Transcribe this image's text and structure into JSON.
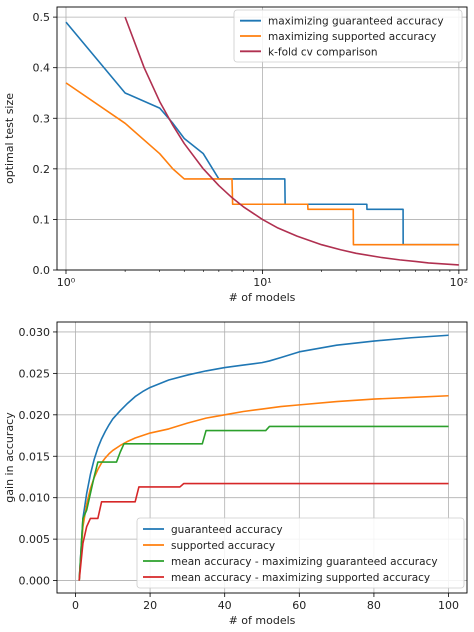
{
  "chart_data": [
    {
      "type": "line",
      "title": "",
      "xlabel": "# of models",
      "ylabel": "optimal test size",
      "xscale": "log",
      "xlim": [
        0.9,
        110
      ],
      "ylim": [
        0,
        0.52
      ],
      "xticks": [
        1,
        10,
        100
      ],
      "xtick_labels": [
        "10⁰",
        "10¹",
        "10²"
      ],
      "yticks": [
        0,
        0.1,
        0.2,
        0.3,
        0.4,
        0.5
      ],
      "ytick_labels": [
        "0.0",
        "0.1",
        "0.2",
        "0.3",
        "0.4",
        "0.5"
      ],
      "grid": true,
      "legend": "top-right",
      "series": [
        {
          "name": "maximizing guaranteed accuracy",
          "color": "#1f77b4",
          "x": [
            1,
            2,
            3,
            3.5,
            4,
            5,
            6,
            7,
            8,
            9,
            10,
            11,
            12,
            13,
            13.05,
            20,
            25,
            30,
            34,
            34.05,
            45,
            50,
            52,
            52.05,
            70,
            100
          ],
          "y": [
            0.49,
            0.35,
            0.32,
            0.29,
            0.26,
            0.23,
            0.18,
            0.18,
            0.18,
            0.18,
            0.18,
            0.18,
            0.18,
            0.18,
            0.13,
            0.13,
            0.13,
            0.13,
            0.13,
            0.12,
            0.12,
            0.12,
            0.12,
            0.05,
            0.05,
            0.05
          ]
        },
        {
          "name": "maximizing supported accuracy",
          "color": "#ff7f0e",
          "x": [
            1,
            2,
            3,
            3.5,
            4,
            5,
            6,
            7,
            7.05,
            10,
            15,
            17,
            17.05,
            24,
            28,
            29,
            29.05,
            50,
            100
          ],
          "y": [
            0.37,
            0.29,
            0.23,
            0.2,
            0.18,
            0.18,
            0.18,
            0.18,
            0.13,
            0.13,
            0.13,
            0.13,
            0.12,
            0.12,
            0.12,
            0.12,
            0.05,
            0.05,
            0.05
          ]
        },
        {
          "name": "k-fold cv comparison",
          "color": "#b03050",
          "x": [
            2,
            2.5,
            3,
            3.5,
            4,
            5,
            6,
            7,
            8,
            10,
            12,
            15,
            20,
            25,
            30,
            40,
            50,
            60,
            70,
            80,
            100
          ],
          "y": [
            0.5,
            0.4,
            0.333,
            0.286,
            0.25,
            0.2,
            0.167,
            0.143,
            0.125,
            0.1,
            0.083,
            0.067,
            0.05,
            0.04,
            0.033,
            0.025,
            0.02,
            0.017,
            0.014,
            0.0125,
            0.01
          ]
        }
      ]
    },
    {
      "type": "line",
      "title": "",
      "xlabel": "# of models",
      "ylabel": "gain in accuracy",
      "xlim": [
        -4.95,
        104.95
      ],
      "ylim": [
        -0.0015,
        0.0312
      ],
      "xticks": [
        0,
        20,
        40,
        60,
        80,
        100
      ],
      "xtick_labels": [
        "0",
        "20",
        "40",
        "60",
        "80",
        "100"
      ],
      "yticks": [
        0,
        0.005,
        0.01,
        0.015,
        0.02,
        0.025,
        0.03
      ],
      "ytick_labels": [
        "0.000",
        "0.005",
        "0.010",
        "0.015",
        "0.020",
        "0.025",
        "0.030"
      ],
      "grid": true,
      "legend": "bottom-right",
      "series": [
        {
          "name": "guaranteed accuracy",
          "color": "#1f77b4",
          "x": [
            1,
            2,
            3,
            4,
            5,
            6,
            7,
            8,
            9,
            10,
            12,
            14,
            16,
            18,
            20,
            25,
            30,
            35,
            40,
            45,
            50,
            52,
            55,
            60,
            70,
            80,
            90,
            100
          ],
          "y": [
            0,
            0.0075,
            0.0105,
            0.0128,
            0.0146,
            0.016,
            0.0171,
            0.018,
            0.0188,
            0.0195,
            0.0205,
            0.0214,
            0.0222,
            0.0228,
            0.0233,
            0.0242,
            0.0248,
            0.0253,
            0.0257,
            0.026,
            0.0263,
            0.0265,
            0.0269,
            0.0276,
            0.0284,
            0.0289,
            0.0293,
            0.0296
          ]
        },
        {
          "name": "supported accuracy",
          "color": "#ff7f0e",
          "x": [
            1,
            2,
            3,
            4,
            5,
            6,
            7,
            8,
            9,
            10,
            12,
            14,
            16,
            18,
            20,
            25,
            30,
            35,
            40,
            45,
            50,
            55,
            60,
            70,
            80,
            90,
            100
          ],
          "y": [
            0,
            0.0065,
            0.0092,
            0.0111,
            0.0124,
            0.0134,
            0.0142,
            0.0148,
            0.0153,
            0.0157,
            0.0163,
            0.0168,
            0.0172,
            0.0175,
            0.0178,
            0.0183,
            0.019,
            0.0196,
            0.02,
            0.0204,
            0.0207,
            0.021,
            0.0212,
            0.0216,
            0.0219,
            0.0221,
            0.0223
          ]
        },
        {
          "name": "mean accuracy - maximizing guaranteed accuracy",
          "color": "#2ca02c",
          "x": [
            1,
            2,
            3,
            4,
            5,
            6,
            7,
            8,
            9,
            10,
            11,
            12,
            13,
            14,
            20,
            30,
            34,
            35,
            40,
            50,
            51,
            52,
            60,
            80,
            100
          ],
          "y": [
            0,
            0.0075,
            0.0085,
            0.0105,
            0.0125,
            0.0143,
            0.0143,
            0.0143,
            0.0143,
            0.0143,
            0.0143,
            0.0155,
            0.0165,
            0.0165,
            0.0165,
            0.0165,
            0.0165,
            0.0181,
            0.0181,
            0.0181,
            0.0181,
            0.0186,
            0.0186,
            0.0186,
            0.0186
          ]
        },
        {
          "name": "mean accuracy - maximizing supported accuracy",
          "color": "#d62728",
          "x": [
            1,
            2,
            3,
            4,
            5,
            6,
            7,
            8,
            9,
            10,
            16,
            17,
            18,
            25,
            28,
            29,
            40,
            60,
            80,
            100
          ],
          "y": [
            0,
            0.0045,
            0.0065,
            0.0075,
            0.0075,
            0.0075,
            0.0095,
            0.0095,
            0.0095,
            0.0095,
            0.0095,
            0.0113,
            0.0113,
            0.0113,
            0.0113,
            0.0117,
            0.0117,
            0.0117,
            0.0117,
            0.0117
          ]
        }
      ]
    }
  ]
}
